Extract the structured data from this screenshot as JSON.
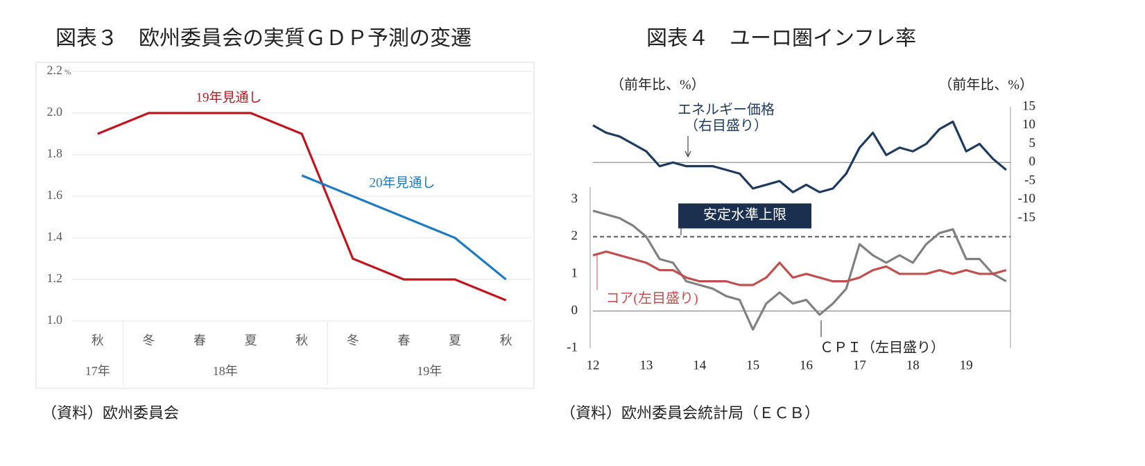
{
  "chart_data": [
    {
      "type": "line",
      "title": "図表３　欧州委員会の実質ＧＤＰ予測の変遷",
      "source": "（資料）欧州委員会",
      "categories": [
        "秋",
        "冬",
        "春",
        "夏",
        "秋",
        "冬",
        "春",
        "夏",
        "秋"
      ],
      "category_groups": [
        {
          "label": "17年",
          "count": 1
        },
        {
          "label": "18年",
          "count": 4
        },
        {
          "label": "19年",
          "count": 4
        }
      ],
      "ylim": [
        1.0,
        2.2
      ],
      "y_unit": "%",
      "yticks": [
        {
          "value": 1.0,
          "label": "1.0"
        },
        {
          "value": 1.2,
          "label": "1.2"
        },
        {
          "value": 1.4,
          "label": "1.4"
        },
        {
          "value": 1.6,
          "label": "1.6"
        },
        {
          "value": 1.8,
          "label": "1.8"
        },
        {
          "value": 2.0,
          "label": "2.0"
        },
        2.2
      ],
      "grid": true,
      "series": [
        {
          "name": "19年見通し",
          "color": "#c0161e",
          "values": [
            1.9,
            2.0,
            2.0,
            2.0,
            1.9,
            1.3,
            1.2,
            1.2,
            1.1
          ]
        },
        {
          "name": "20年見通し",
          "color": "#1f7bc1",
          "values": [
            null,
            null,
            null,
            null,
            1.7,
            1.6,
            1.5,
            1.4,
            1.2
          ]
        }
      ]
    },
    {
      "type": "line",
      "title": "図表４　ユーロ圏インフレ率",
      "source": "（資料）欧州委員会統計局（ＥＣＢ）",
      "ylabel": "（前年比、%）",
      "y2label": "（前年比、%）",
      "x": [
        12,
        12.25,
        12.5,
        12.75,
        13,
        13.25,
        13.5,
        13.75,
        14,
        14.25,
        14.5,
        14.75,
        15,
        15.25,
        15.5,
        15.75,
        16,
        16.25,
        16.5,
        16.75,
        17,
        17.25,
        17.5,
        17.75,
        18,
        18.25,
        18.5,
        18.75,
        19,
        19.25,
        19.5,
        19.75
      ],
      "xlim": [
        12,
        19.83
      ],
      "xticks": [
        12,
        13,
        14,
        15,
        16,
        17,
        18,
        19
      ],
      "ylim": [
        -1,
        5.5
      ],
      "yticks": [
        -1,
        0,
        1,
        2,
        3
      ],
      "y2lim": [
        -50,
        15
      ],
      "y2ticks": [
        -15,
        -10,
        -5,
        0,
        5,
        10,
        15
      ],
      "zero_lines": true,
      "reference_lines": [
        {
          "value": 2,
          "label": "安定水準上限"
        }
      ],
      "annotations": [
        "（右目盛り）"
      ],
      "series": [
        {
          "name": "エネルギー価格",
          "color": "#1f3a5f",
          "axis": "y2",
          "values": [
            10,
            8,
            7,
            5,
            3,
            -1,
            0,
            -1,
            -1,
            -1,
            -2,
            -3,
            -7,
            -6,
            -5,
            -8,
            -6,
            -8,
            -7,
            -3,
            4,
            8,
            2,
            4,
            3,
            5,
            9,
            11,
            3,
            5,
            1,
            -2
          ]
        },
        {
          "name": "ＣＰＩ（左目盛り）",
          "color": "#808080",
          "values": [
            2.7,
            2.6,
            2.5,
            2.3,
            2.0,
            1.4,
            1.3,
            0.8,
            0.7,
            0.6,
            0.4,
            0.3,
            -0.5,
            0.2,
            0.5,
            0.2,
            0.3,
            -0.1,
            0.2,
            0.6,
            1.8,
            1.5,
            1.3,
            1.5,
            1.3,
            1.8,
            2.1,
            2.2,
            1.4,
            1.4,
            1.0,
            0.8
          ]
        },
        {
          "name": "コア(左目盛り)",
          "color": "#c0504d",
          "values": [
            1.5,
            1.6,
            1.5,
            1.4,
            1.3,
            1.1,
            1.1,
            0.9,
            0.8,
            0.8,
            0.8,
            0.7,
            0.7,
            0.9,
            1.3,
            0.9,
            1.0,
            0.9,
            0.8,
            0.8,
            0.9,
            1.1,
            1.2,
            1.0,
            1.0,
            1.0,
            1.1,
            1.0,
            1.1,
            1.0,
            1.0,
            1.1
          ]
        }
      ]
    }
  ]
}
